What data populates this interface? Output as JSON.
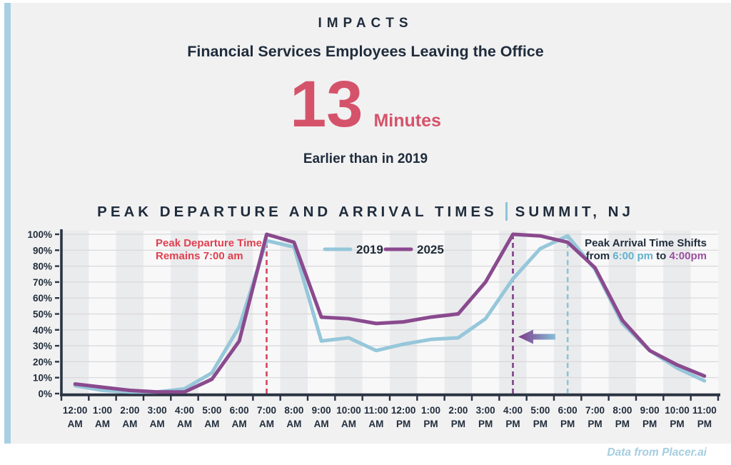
{
  "header": {
    "kicker": "IMPACTS",
    "title": "Financial Services Employees Leaving the Office",
    "stat_value": "13",
    "stat_unit": "Minutes",
    "stat_caption": "Earlier than in 2019"
  },
  "section": {
    "title_left": "PEAK DEPARTURE AND ARRIVAL TIMES",
    "title_right": "SUMMIT, NJ"
  },
  "annotations": {
    "departure": {
      "line1": "Peak Departure Time",
      "line2": "Remains 7:00 am"
    },
    "arrival": {
      "line1": "Peak Arrival Time Shifts",
      "from_label": "from",
      "from_time": "6:00 pm",
      "to_label": "to",
      "to_time": "4:00pm"
    }
  },
  "legend": [
    {
      "label": "2019",
      "color": "#96c7da"
    },
    {
      "label": "2025",
      "color": "#8a4a8e"
    }
  ],
  "footer": {
    "credit": "Data from Placer.ai"
  },
  "palette": {
    "navy_text": "#1f2c3b",
    "stat_red": "#d5536a",
    "annotation_red": "#e0404f",
    "accent_stripe_blue": "#a9d0e2",
    "panel_gray": "#f1f1f2",
    "band_gray": "#eaebed",
    "band_light": "#f8f8f9",
    "gridline": "#d8d8da",
    "axis": "#2b3442"
  },
  "chart_data": {
    "type": "line",
    "title": "PEAK DEPARTURE AND ARRIVAL TIMES | SUMMIT, NJ",
    "grid": true,
    "legend_position": "top-center",
    "ylim": [
      0,
      100
    ],
    "y_tick_labels": [
      "0%",
      "10%",
      "20%",
      "30%",
      "40%",
      "50%",
      "60%",
      "70%",
      "80%",
      "90%",
      "100%"
    ],
    "x": [
      "12:00 AM",
      "1:00 AM",
      "2:00 AM",
      "3:00 AM",
      "4:00 AM",
      "5:00 AM",
      "6:00 AM",
      "7:00 AM",
      "8:00 AM",
      "9:00 AM",
      "10:00 AM",
      "11:00 AM",
      "12:00 PM",
      "1:00 PM",
      "2:00 PM",
      "3:00 PM",
      "4:00 PM",
      "5:00 PM",
      "6:00 PM",
      "7:00 PM",
      "8:00 PM",
      "9:00 PM",
      "10:00 PM",
      "11:00 PM"
    ],
    "series": [
      {
        "name": "2019",
        "color": "#96c7da",
        "values": [
          5,
          2,
          1,
          1,
          3,
          13,
          42,
          96,
          92,
          33,
          35,
          27,
          31,
          34,
          35,
          47,
          72,
          91,
          99,
          78,
          44,
          27,
          16,
          8
        ]
      },
      {
        "name": "2025",
        "color": "#8a4a8e",
        "values": [
          6,
          4,
          2,
          1,
          1,
          9,
          33,
          100,
          95,
          48,
          47,
          44,
          45,
          48,
          50,
          70,
          100,
          99,
          95,
          79,
          46,
          27,
          18,
          11
        ]
      }
    ],
    "markers": [
      {
        "x_index": 7,
        "label": "7:00 AM",
        "color": "#d64459",
        "meaning": "Peak Departure Time Remains 7:00 am"
      },
      {
        "x_index": 16,
        "label": "4:00 PM",
        "color": "#7e3e87",
        "meaning": "New peak arrival time 2025"
      },
      {
        "x_index": 18,
        "label": "6:00 PM",
        "color": "#8cc3d8",
        "meaning": "Former peak arrival time 2019"
      }
    ],
    "shift_arrow": {
      "from_index": 18,
      "to_index": 16,
      "color_from": "#88bed8",
      "color_to": "#7c3b8a"
    }
  }
}
